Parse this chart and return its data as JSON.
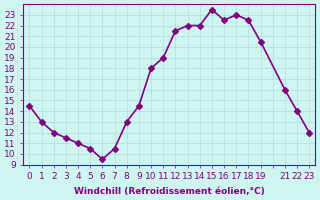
{
  "x": [
    0,
    1,
    2,
    3,
    4,
    5,
    6,
    7,
    8,
    9,
    10,
    11,
    12,
    13,
    14,
    15,
    16,
    17,
    18,
    19,
    21,
    22,
    23
  ],
  "y": [
    14.5,
    13.0,
    12.0,
    11.5,
    11.0,
    10.5,
    9.5,
    10.5,
    13.0,
    14.5,
    18.0,
    19.0,
    21.5,
    22.0,
    22.0,
    23.5,
    22.5,
    23.0,
    22.5,
    20.5,
    16.0,
    14.0,
    12.0
  ],
  "line_color": "#800080",
  "marker": "D",
  "marker_size": 3,
  "line_width": 1.2,
  "bg_color": "#cff5f0",
  "grid_color": "#aadddd",
  "tick_color": "#800080",
  "label_color": "#800080",
  "xlabel": "Windchill (Refroidissement éolien,°C)",
  "ylabel": "",
  "title": "",
  "xlim": [
    -0.5,
    23.5
  ],
  "ylim": [
    9,
    24
  ],
  "xticks": [
    0,
    1,
    2,
    3,
    4,
    5,
    6,
    7,
    8,
    9,
    10,
    11,
    12,
    13,
    14,
    15,
    16,
    17,
    18,
    19,
    20,
    21,
    22,
    23
  ],
  "xtick_labels": [
    "0",
    "1",
    "2",
    "3",
    "4",
    "5",
    "6",
    "7",
    "8",
    "9",
    "10",
    "11",
    "12",
    "13",
    "14",
    "15",
    "16",
    "17",
    "18",
    "19",
    "",
    "21",
    "22",
    "23"
  ],
  "yticks": [
    9,
    10,
    11,
    12,
    13,
    14,
    15,
    16,
    17,
    18,
    19,
    20,
    21,
    22,
    23
  ],
  "ytick_labels": [
    "9",
    "10",
    "11",
    "12",
    "13",
    "14",
    "15",
    "16",
    "17",
    "18",
    "19",
    "20",
    "21",
    "22",
    "23"
  ],
  "font_size": 6.5
}
